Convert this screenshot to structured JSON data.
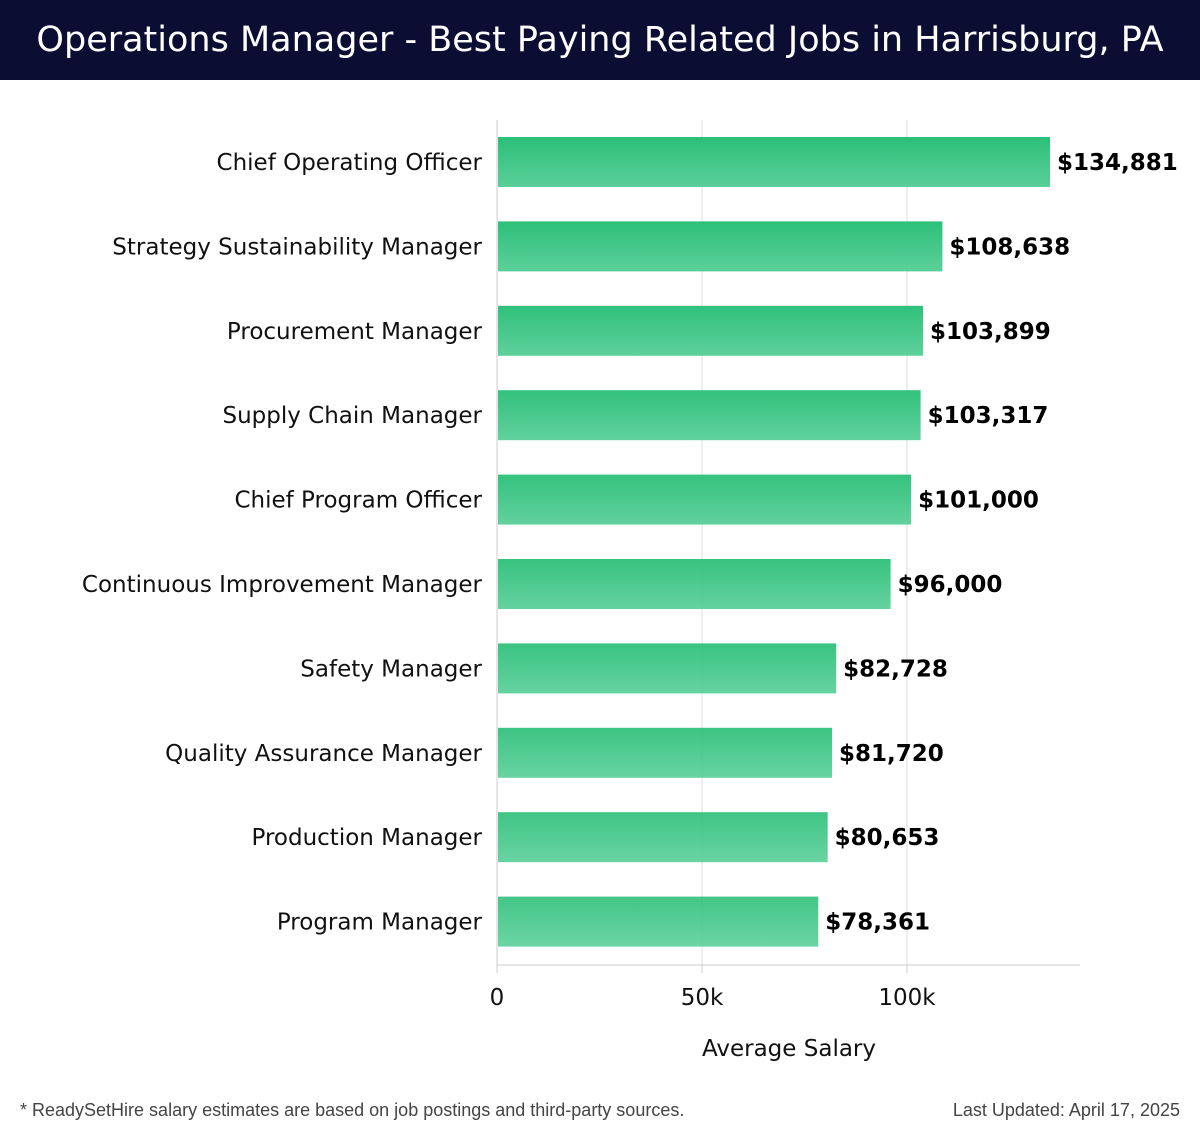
{
  "header": {
    "title": "Operations Manager - Best Paying Related Jobs in Harrisburg, PA"
  },
  "footer": {
    "note": "* ReadySetHire salary estimates are based on job postings and third-party sources.",
    "last_updated": "Last Updated: April 17, 2025"
  },
  "colors": {
    "title_bar": "#0b0d33",
    "bar_top": "#2bbf78",
    "bar_bottom": "#5acf99",
    "grid": "#dddddd",
    "axis": "#cccccc",
    "text": "#111111"
  },
  "chart_data": {
    "type": "bar",
    "orientation": "horizontal",
    "title": "Operations Manager - Best Paying Related Jobs in Harrisburg, PA",
    "xlabel": "Average Salary",
    "ylabel": "",
    "xlim": [
      0,
      142000
    ],
    "x_ticks": [
      0,
      50000,
      100000
    ],
    "x_tick_labels": [
      "0",
      "50k",
      "100k"
    ],
    "grid": "vertical",
    "categories": [
      "Chief Operating Officer",
      "Strategy Sustainability Manager",
      "Procurement Manager",
      "Supply Chain Manager",
      "Chief Program Officer",
      "Continuous Improvement Manager",
      "Safety Manager",
      "Quality Assurance Manager",
      "Production Manager",
      "Program Manager"
    ],
    "values": [
      134881,
      108638,
      103899,
      103317,
      101000,
      96000,
      82728,
      81720,
      80653,
      78361
    ],
    "value_labels": [
      "$134,881",
      "$108,638",
      "$103,899",
      "$103,317",
      "$101,000",
      "$96,000",
      "$82,728",
      "$81,720",
      "$80,653",
      "$78,361"
    ]
  }
}
